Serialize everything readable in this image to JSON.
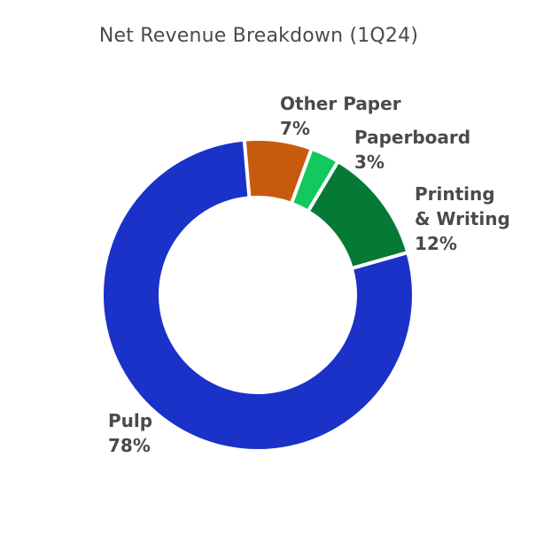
{
  "chart_data": {
    "type": "pie",
    "title": "Net Revenue Breakdown (1Q24)",
    "donut": true,
    "slices": [
      {
        "label": "Pulp",
        "label_lines": [
          "Pulp"
        ],
        "value": 78,
        "value_text": "78%",
        "color": "#1a32c8"
      },
      {
        "label": "Other Paper",
        "label_lines": [
          "Other Paper"
        ],
        "value": 7,
        "value_text": "7%",
        "color": "#c85a0e"
      },
      {
        "label": "Paperboard",
        "label_lines": [
          "Paperboard"
        ],
        "value": 3,
        "value_text": "3%",
        "color": "#12c95e"
      },
      {
        "label": "Printing & Writing",
        "label_lines": [
          "Printing",
          "& Writing"
        ],
        "value": 12,
        "value_text": "12%",
        "color": "#057a35"
      }
    ]
  }
}
